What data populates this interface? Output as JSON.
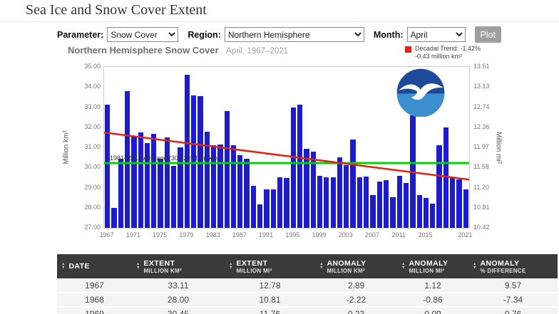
{
  "page": {
    "title": "Sea Ice and Snow Cover Extent"
  },
  "controls": {
    "parameter_label": "Parameter:",
    "parameter_value": "Snow Cover",
    "region_label": "Region:",
    "region_value": "Northern Hemisphere",
    "month_label": "Month:",
    "month_value": "April",
    "plot_button": "Plot"
  },
  "chart": {
    "title": "Northern Hemisphere Snow Cover",
    "subtitle": "April, 1967–2021",
    "legend_line1": "Decadal Trend: -1.42%",
    "legend_line2": "-0.43 million km²",
    "y_left_label": "Million km²",
    "y_right_label": "Million mi²",
    "average_label": "1981–2010 Average (30.22 million km²)"
  },
  "chart_data": {
    "type": "bar",
    "title": "Northern Hemisphere Snow Cover — April, 1967–2021",
    "x": [
      1967,
      1968,
      1969,
      1970,
      1971,
      1972,
      1973,
      1974,
      1975,
      1976,
      1977,
      1978,
      1979,
      1980,
      1981,
      1982,
      1983,
      1984,
      1985,
      1986,
      1987,
      1988,
      1989,
      1990,
      1991,
      1992,
      1993,
      1994,
      1995,
      1996,
      1997,
      1998,
      1999,
      2000,
      2001,
      2002,
      2003,
      2004,
      2005,
      2006,
      2007,
      2008,
      2009,
      2010,
      2011,
      2012,
      2013,
      2014,
      2015,
      2016,
      2017,
      2018,
      2019,
      2020,
      2021
    ],
    "values": [
      33.11,
      28.0,
      30.45,
      33.81,
      31.52,
      31.75,
      31.2,
      31.68,
      30.42,
      31.48,
      30.09,
      30.99,
      34.62,
      33.6,
      33.55,
      31.78,
      31.1,
      31.15,
      32.8,
      31.1,
      30.61,
      30.42,
      29.1,
      28.16,
      28.92,
      28.91,
      29.51,
      29.48,
      32.98,
      33.12,
      30.92,
      30.78,
      29.6,
      29.5,
      29.5,
      30.52,
      30.12,
      31.4,
      29.52,
      29.55,
      28.62,
      29.3,
      29.38,
      28.52,
      29.6,
      29.22,
      32.6,
      28.62,
      28.5,
      28.2,
      31.1,
      32.0,
      29.5,
      29.4,
      28.9
    ],
    "ylim": [
      27,
      35
    ],
    "y_ticks_left": [
      "35.00",
      "34.00",
      "33.00",
      "32.00",
      "31.00",
      "30.00",
      "29.00",
      "28.00",
      "27.00"
    ],
    "y_ticks_right": [
      "13.51",
      "13.13",
      "12.74",
      "12.36",
      "11.97",
      "11.58",
      "11.20",
      "10.81",
      "10.42"
    ],
    "x_tick_years": [
      1967,
      1971,
      1975,
      1979,
      1983,
      1987,
      1991,
      1995,
      1999,
      2003,
      2007,
      2011,
      2015,
      2021
    ],
    "average_line": 30.22,
    "trend_start": 31.74,
    "trend_end": 29.4,
    "bar_color": "#1c1ccd",
    "average_color": "#00d400",
    "trend_color": "#e42313",
    "xlabel": "",
    "ylabel": "Million km²",
    "legend_position": "top-right"
  },
  "table": {
    "headers": [
      {
        "top": "DATE",
        "bottom": ""
      },
      {
        "top": "EXTENT",
        "bottom": "MILLION KM²"
      },
      {
        "top": "EXTENT",
        "bottom": "MILLION MI²"
      },
      {
        "top": "ANOMALY",
        "bottom": "MILLION KM²"
      },
      {
        "top": "ANOMALY",
        "bottom": "MILLION MI²"
      },
      {
        "top": "ANOMALY",
        "bottom": "% DIFFERENCE"
      }
    ],
    "rows": [
      [
        "1967",
        "33.11",
        "12.78",
        "2.89",
        "1.12",
        "9.57"
      ],
      [
        "1968",
        "28.00",
        "10.81",
        "-2.22",
        "-0.86",
        "-7.34"
      ],
      [
        "1969",
        "30.45",
        "11.76",
        "0.23",
        "0.09",
        "0.76"
      ]
    ]
  }
}
